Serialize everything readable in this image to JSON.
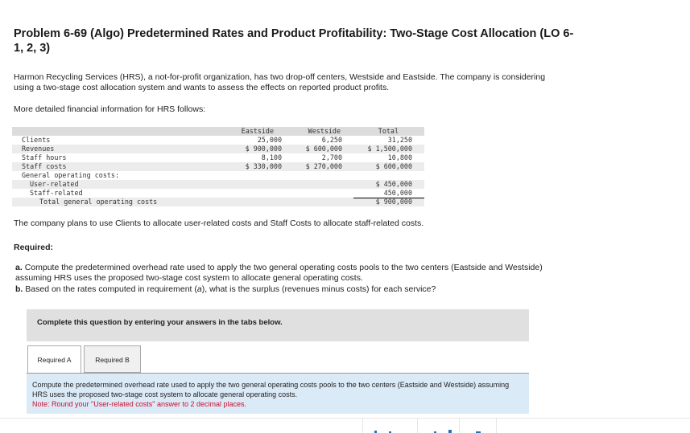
{
  "title": "Problem 6-69 (Algo) Predetermined Rates and Product Profitability: Two-Stage Cost Allocation (LO 6-1, 2, 3)",
  "intro": "Harmon Recycling Services (HRS), a not-for-profit organization, has two drop-off centers, Westside and Eastside. The company is considering using a two-stage cost allocation system and wants to assess the effects on reported product profits.",
  "more_info": "More detailed financial information for HRS follows:",
  "table": {
    "headers": [
      "",
      "Eastside",
      "Westside",
      "Total"
    ],
    "rows": [
      [
        "Clients",
        "25,000",
        "6,250",
        "31,250"
      ],
      [
        "Revenues",
        "$ 900,000",
        "$ 600,000",
        "$ 1,500,000"
      ],
      [
        "Staff hours",
        "8,100",
        "2,700",
        "10,800"
      ],
      [
        "Staff costs",
        "$ 330,000",
        "$ 270,000",
        "$ 600,000"
      ],
      [
        "General operating costs:",
        "",
        "",
        ""
      ],
      [
        "User-related",
        "",
        "",
        "$ 450,000"
      ],
      [
        "Staff-related",
        "",
        "",
        "450,000"
      ],
      [
        "Total general operating costs",
        "",
        "",
        "$ 900,000"
      ]
    ]
  },
  "plan": "The company plans to use Clients to allocate user-related costs and Staff Costs to allocate staff-related costs.",
  "required_label": "Required:",
  "req_a_label": "a.",
  "req_a": "Compute the predetermined overhead rate used to apply the two general operating costs pools to the two centers (Eastside and Westside) assuming HRS uses the proposed two-stage cost system to allocate general operating costs.",
  "req_b_label": "b.",
  "req_b_pre": "Based on the rates computed in requirement (",
  "req_b_em": "a",
  "req_b_post": "), what is the surplus (revenues minus costs) for each service?",
  "complete_banner": "Complete this question by entering your answers in the tabs below.",
  "tabs": [
    {
      "label": "Required A",
      "active": true
    },
    {
      "label": "Required B",
      "active": false
    }
  ],
  "panel": {
    "instruction": "Compute the predetermined overhead rate used to apply the two general operating costs pools to the two centers (Eastside and Westside) assuming HRS uses the proposed two-stage cost system to allocate general operating costs.",
    "note": "Note: Round your \"User-related costs\" answer to 2 decimal places."
  },
  "colors": {
    "panel_bg": "#dbeaf7",
    "note": "#c8102e",
    "banner_bg": "#e0e0e0"
  }
}
